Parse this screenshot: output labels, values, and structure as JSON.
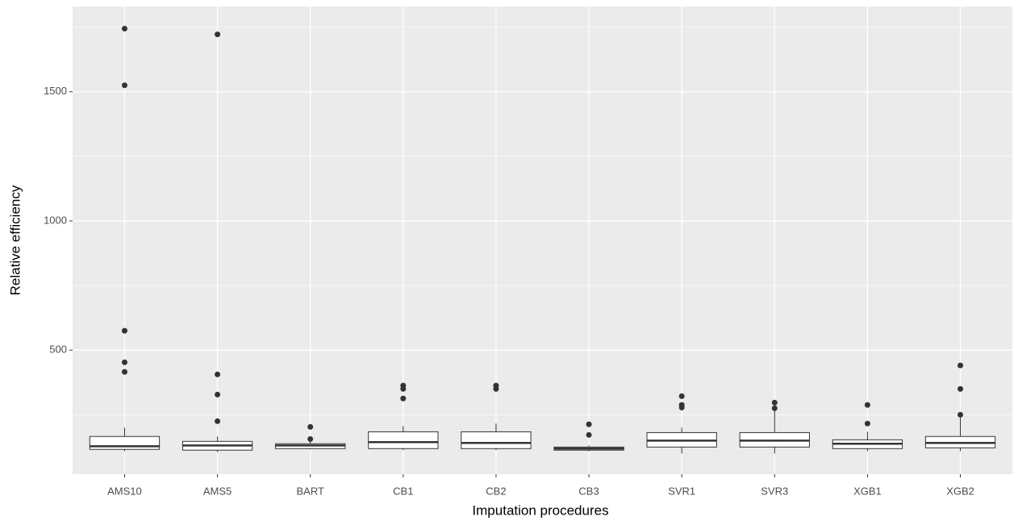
{
  "chart_data": {
    "type": "boxplot",
    "x_label": "Imputation procedures",
    "y_label": "Relative efficiency",
    "categories": [
      "AMS10",
      "AMS5",
      "BART",
      "CB1",
      "CB2",
      "CB3",
      "SVR1",
      "SVR3",
      "XGB1",
      "XGB2"
    ],
    "boxes": [
      {
        "low": 109,
        "q1": 116,
        "median": 128,
        "q3": 166,
        "high": 200,
        "outliers": [
          1744,
          1525,
          575,
          453,
          416
        ]
      },
      {
        "low": 106,
        "q1": 113,
        "median": 131,
        "q3": 147,
        "high": 166,
        "outliers": [
          1722,
          406,
          328,
          225
        ]
      },
      {
        "low": 116,
        "q1": 119,
        "median": 131,
        "q3": 138,
        "high": 153,
        "outliers": [
          203,
          156
        ]
      },
      {
        "low": 113,
        "q1": 119,
        "median": 144,
        "q3": 184,
        "high": 206,
        "outliers": [
          363,
          350,
          313
        ]
      },
      {
        "low": 113,
        "q1": 119,
        "median": 141,
        "q3": 184,
        "high": 216,
        "outliers": [
          363,
          350
        ]
      },
      {
        "low": 109,
        "q1": 113,
        "median": 119,
        "q3": 125,
        "high": 131,
        "outliers": [
          213,
          172
        ]
      },
      {
        "low": 100,
        "q1": 125,
        "median": 150,
        "q3": 181,
        "high": 200,
        "outliers": [
          322,
          288,
          278
        ]
      },
      {
        "low": 100,
        "q1": 125,
        "median": 150,
        "q3": 181,
        "high": 288,
        "outliers": [
          297,
          275
        ]
      },
      {
        "low": 109,
        "q1": 119,
        "median": 138,
        "q3": 153,
        "high": 184,
        "outliers": [
          288,
          216
        ]
      },
      {
        "low": 109,
        "q1": 122,
        "median": 141,
        "q3": 166,
        "high": 241,
        "outliers": [
          441,
          350,
          250
        ]
      }
    ],
    "ylim": [
      20,
      1830
    ],
    "yticks": [
      500,
      1000,
      1500
    ],
    "minor_yticks": [
      250,
      750,
      1250,
      1750
    ],
    "grid": true,
    "box_fill": "#ffffff",
    "line_color": "#333333",
    "panel_color": "#ebebeb"
  }
}
